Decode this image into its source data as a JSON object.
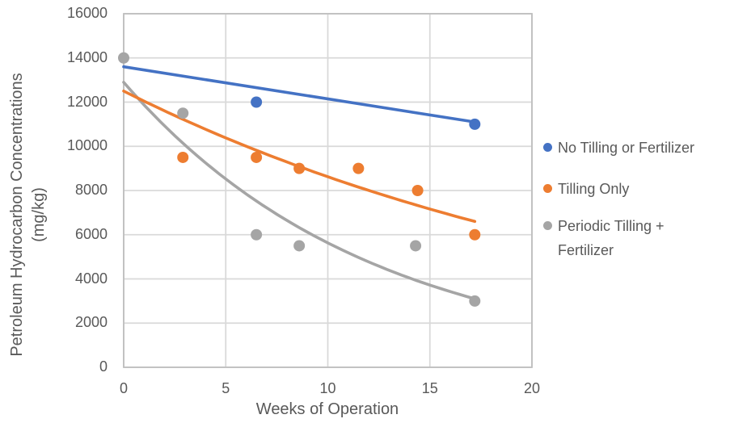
{
  "chart_data": {
    "type": "scatter",
    "title": "",
    "x_axis": {
      "label": "Weeks of Operation",
      "min": 0,
      "max": 20,
      "ticks": [
        0,
        5,
        10,
        15,
        20
      ]
    },
    "y_axis": {
      "label": "Petroleum Hydrocarbon Concentrations",
      "units_label": "(mg/kg)",
      "min": 0,
      "max": 16000,
      "ticks": [
        0,
        2000,
        4000,
        6000,
        8000,
        10000,
        12000,
        14000,
        16000
      ]
    },
    "grid": true,
    "legend_position": "right",
    "colors": {
      "blue": "#4472C4",
      "orange": "#ED7D31",
      "gray": "#A5A5A5",
      "axis_text": "#595959",
      "gridline": "#D9D9D9",
      "axis_line": "#BFBFBF"
    },
    "series": [
      {
        "id": "no-tilling-or-fertilizer",
        "name": "No Tilling or Fertilizer",
        "color": "#4472C4",
        "points": [
          [
            6.5,
            12000
          ],
          [
            17.2,
            11000
          ]
        ],
        "trend": {
          "type": "linear",
          "start": [
            0,
            13600
          ],
          "end": [
            17.2,
            11100
          ]
        }
      },
      {
        "id": "tilling-only",
        "name": "Tilling Only",
        "color": "#ED7D31",
        "points": [
          [
            2.9,
            9500
          ],
          [
            6.5,
            9500
          ],
          [
            8.6,
            9000
          ],
          [
            11.5,
            9000
          ],
          [
            14.4,
            8000
          ],
          [
            17.2,
            6000
          ]
        ],
        "trend": {
          "type": "exponential",
          "start": [
            0,
            12500
          ],
          "end": [
            17.2,
            6600
          ]
        }
      },
      {
        "id": "periodic-tilling-fertilizer",
        "name": "Periodic Tilling + Fertilizer",
        "color": "#A5A5A5",
        "points": [
          [
            0,
            14000
          ],
          [
            2.9,
            11500
          ],
          [
            6.5,
            6000
          ],
          [
            8.6,
            5500
          ],
          [
            14.3,
            5500
          ],
          [
            17.2,
            3000
          ]
        ],
        "trend": {
          "type": "exponential",
          "start": [
            0,
            12900
          ],
          "end": [
            17.2,
            3100
          ]
        }
      }
    ]
  }
}
